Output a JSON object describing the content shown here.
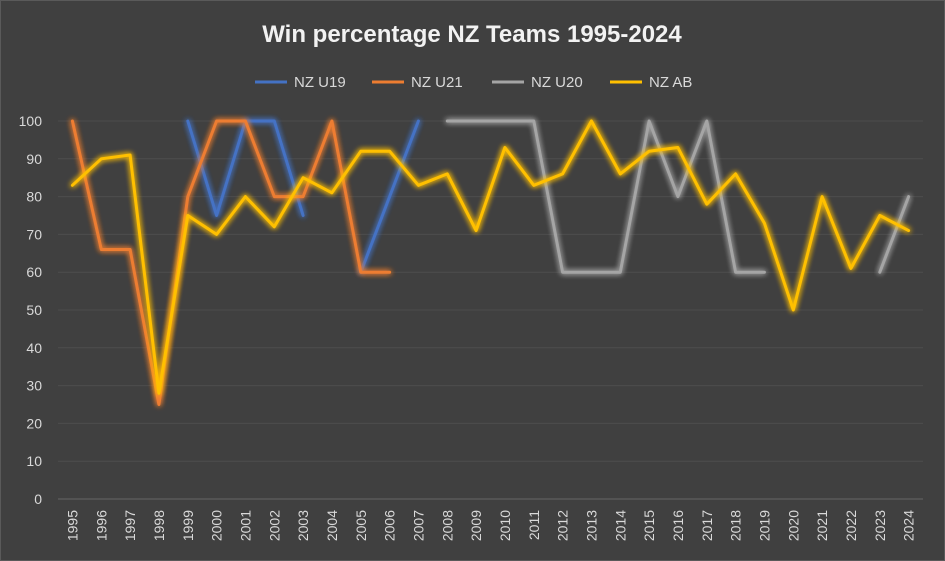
{
  "chart_data": {
    "type": "line",
    "title": "Win percentage NZ Teams 1995-2024",
    "xlabel": "",
    "ylabel": "",
    "ylim": [
      0,
      100
    ],
    "yticks": [
      0,
      10,
      20,
      30,
      40,
      50,
      60,
      70,
      80,
      90,
      100
    ],
    "legend_position": "top",
    "grid": true,
    "x": [
      "1995",
      "1996",
      "1997",
      "1998",
      "1999",
      "2000",
      "2001",
      "2002",
      "2003",
      "2004",
      "2005",
      "2006",
      "2007",
      "2008",
      "2009",
      "2010",
      "2011",
      "2012",
      "2013",
      "2014",
      "2015",
      "2016",
      "2017",
      "2018",
      "2019",
      "2020",
      "2021",
      "2022",
      "2023",
      "2024"
    ],
    "series": [
      {
        "name": "NZ U19",
        "color": "#4472c4",
        "values": [
          null,
          null,
          null,
          null,
          100,
          75,
          100,
          100,
          75,
          null,
          60,
          80,
          100,
          null,
          null,
          null,
          null,
          null,
          null,
          null,
          null,
          null,
          null,
          null,
          null,
          null,
          null,
          null,
          null,
          null
        ]
      },
      {
        "name": "NZ U21",
        "color": "#ed7d31",
        "values": [
          100,
          66,
          66,
          25,
          80,
          100,
          100,
          80,
          80,
          100,
          60,
          60,
          null,
          null,
          null,
          null,
          null,
          null,
          null,
          null,
          null,
          null,
          null,
          null,
          null,
          null,
          null,
          null,
          null,
          null
        ]
      },
      {
        "name": "NZ U20",
        "color": "#a5a5a5",
        "values": [
          null,
          null,
          null,
          null,
          null,
          null,
          null,
          null,
          null,
          null,
          null,
          null,
          null,
          100,
          100,
          100,
          100,
          60,
          60,
          60,
          100,
          80,
          100,
          60,
          60,
          null,
          null,
          null,
          60,
          80
        ]
      },
      {
        "name": "NZ AB",
        "color": "#ffc000",
        "values": [
          83,
          90,
          91,
          28,
          75,
          70,
          80,
          72,
          85,
          81,
          92,
          92,
          83,
          86,
          71,
          93,
          83,
          86,
          100,
          86,
          92,
          93,
          78,
          86,
          73,
          50,
          80,
          61,
          75,
          71
        ]
      }
    ]
  }
}
